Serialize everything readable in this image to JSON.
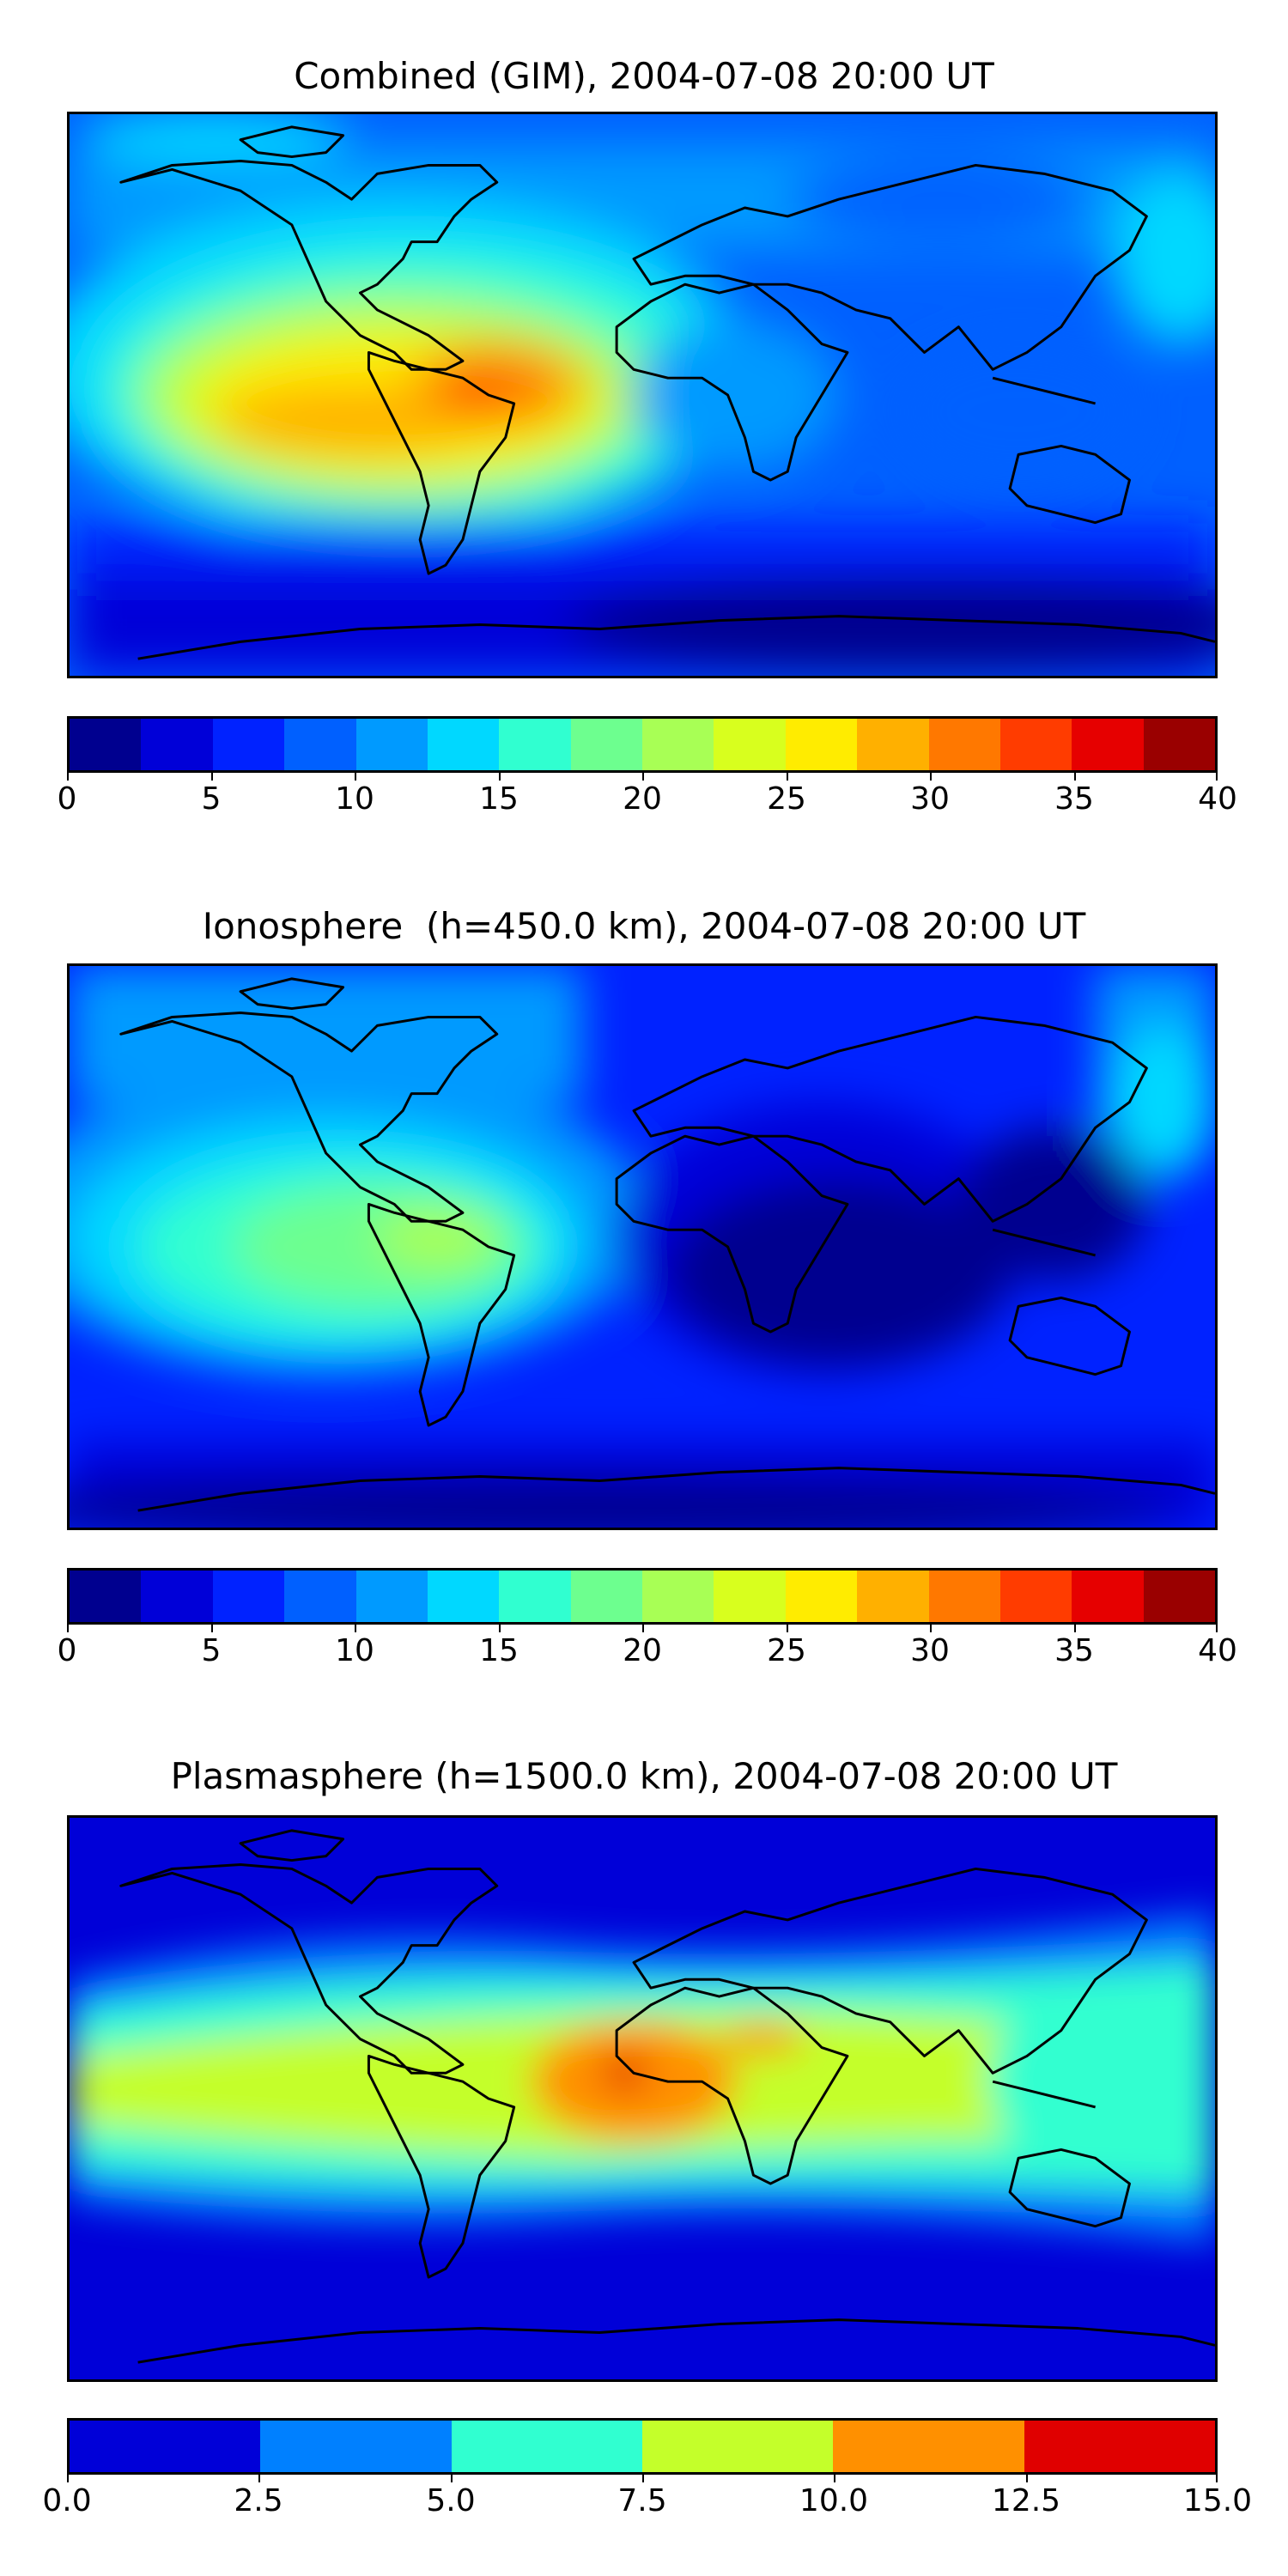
{
  "panels": [
    {
      "title": "Combined (GIM), 2004-07-08 20:00 UT",
      "colorbar": {
        "colors": [
          "#00008f",
          "#0000d8",
          "#0022ff",
          "#0060ff",
          "#009aff",
          "#00d8ff",
          "#30ffd0",
          "#6dff8f",
          "#a8ff55",
          "#d8ff1e",
          "#ffec00",
          "#ffb000",
          "#ff7800",
          "#ff3c00",
          "#e60000",
          "#9a0000"
        ],
        "tick_labels": [
          "0",
          "5",
          "10",
          "15",
          "20",
          "25",
          "30",
          "35",
          "40"
        ]
      }
    },
    {
      "title": "Ionosphere  (h=450.0 km), 2004-07-08 20:00 UT",
      "colorbar": {
        "colors": [
          "#00008f",
          "#0000d8",
          "#0022ff",
          "#0060ff",
          "#009aff",
          "#00d8ff",
          "#30ffd0",
          "#6dff8f",
          "#a8ff55",
          "#d8ff1e",
          "#ffec00",
          "#ffb000",
          "#ff7800",
          "#ff3c00",
          "#e60000",
          "#9a0000"
        ],
        "tick_labels": [
          "0",
          "5",
          "10",
          "15",
          "20",
          "25",
          "30",
          "35",
          "40"
        ]
      }
    },
    {
      "title": "Plasmasphere (h=1500.0 km), 2004-07-08 20:00 UT",
      "colorbar": {
        "colors": [
          "#0000d8",
          "#0080ff",
          "#30ffd0",
          "#c4ff2a",
          "#ff9000",
          "#e00000"
        ],
        "tick_labels": [
          "0.0",
          "2.5",
          "5.0",
          "7.5",
          "10.0",
          "12.5",
          "15.0"
        ]
      }
    }
  ]
}
